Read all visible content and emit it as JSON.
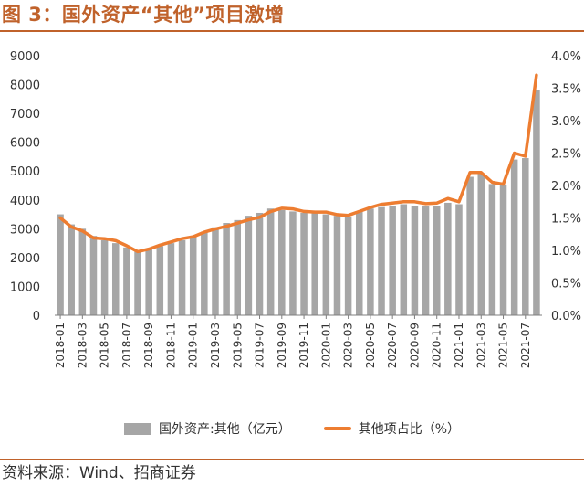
{
  "title": "图 3：国外资产“其他”项目激增",
  "source": "资料来源：Wind、招商证券",
  "colors": {
    "bar": "#a6a6a6",
    "line": "#ed7d31",
    "accent": "#c0622b"
  },
  "legend": {
    "bar_label": "国外资产:其他（亿元）",
    "line_label": "其他项占比（%）"
  },
  "chart_data": {
    "type": "bar",
    "y_left": {
      "ticks": [
        "0",
        "1000",
        "2000",
        "3000",
        "4000",
        "5000",
        "6000",
        "7000",
        "8000",
        "9000"
      ],
      "ylim": [
        0,
        9000
      ]
    },
    "y_right": {
      "ticks": [
        "0.0%",
        "0.5%",
        "1.0%",
        "1.5%",
        "2.0%",
        "2.5%",
        "3.0%",
        "3.5%",
        "4.0%"
      ],
      "ylim": [
        0,
        4.0
      ]
    },
    "x_tick_labels": [
      "2018-01",
      "2018-03",
      "2018-05",
      "2018-07",
      "2018-09",
      "2018-11",
      "2019-01",
      "2019-03",
      "2019-05",
      "2019-07",
      "2019-09",
      "2019-11",
      "2020-01",
      "2020-03",
      "2020-05",
      "2020-07",
      "2020-09",
      "2020-11",
      "2021-01",
      "2021-03",
      "2021-05",
      "2021-07"
    ],
    "grid": false,
    "legend_position": "bottom",
    "series": [
      {
        "name": "国外资产:其他（亿元）",
        "type": "bar",
        "axis": "left",
        "values": [
          3500,
          3150,
          3000,
          2750,
          2600,
          2500,
          2350,
          2200,
          2300,
          2400,
          2500,
          2600,
          2750,
          2900,
          3050,
          3200,
          3300,
          3450,
          3550,
          3700,
          3650,
          3600,
          3550,
          3550,
          3500,
          3450,
          3400,
          3600,
          3700,
          3750,
          3800,
          3850,
          3800,
          3800,
          3800,
          3900,
          3850,
          4800,
          4900,
          4550,
          4500,
          5400,
          5450,
          7800
        ]
      },
      {
        "name": "其他项占比（%）",
        "type": "line",
        "axis": "right",
        "values": [
          1.5,
          1.36,
          1.3,
          1.19,
          1.18,
          1.15,
          1.07,
          0.98,
          1.02,
          1.08,
          1.13,
          1.18,
          1.21,
          1.28,
          1.33,
          1.37,
          1.42,
          1.47,
          1.51,
          1.6,
          1.65,
          1.64,
          1.6,
          1.59,
          1.59,
          1.55,
          1.54,
          1.6,
          1.66,
          1.71,
          1.73,
          1.75,
          1.75,
          1.72,
          1.73,
          1.8,
          1.75,
          2.2,
          2.2,
          2.05,
          2.02,
          2.5,
          2.45,
          3.7
        ]
      }
    ]
  }
}
